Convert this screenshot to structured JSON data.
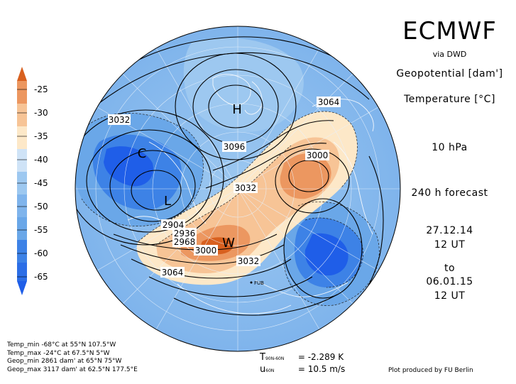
{
  "header": {
    "title": "ECMWF",
    "source": "via DWD",
    "field1_label": "Geopotential [dam']",
    "field2_label": "Temperature [°C]",
    "level": "10 hPa",
    "forecast": "240 h forecast",
    "init_date": "27.12.14",
    "init_time": "12 UT",
    "to_label": "to",
    "valid_date": "06.01.15",
    "valid_time": "12 UT"
  },
  "colorbar": {
    "labels": [
      "-25",
      "-30",
      "-35",
      "-40",
      "-45",
      "-50",
      "-55",
      "-60",
      "-65"
    ],
    "colors": [
      "#d8601f",
      "#ec9760",
      "#f7c496",
      "#fde8c8",
      "#cfe3f7",
      "#9dc8f0",
      "#6aa7e8",
      "#3d82e6",
      "#1f5ee8"
    ]
  },
  "map": {
    "contour_labels": [
      "3032",
      "3064",
      "3096",
      "3000",
      "3032",
      "2904",
      "2936",
      "2968",
      "3000",
      "3032",
      "3064"
    ],
    "pressure_markers": [
      "H",
      "C",
      "L",
      "W"
    ],
    "station_label": "FUB"
  },
  "extremes": {
    "temp_min": "Temp_min -68°C at 55°N 107.5°W",
    "temp_max": "Temp_max -24°C at 67.5°N 5°W",
    "geop_min": "Geop_min 2861 dam' at 65°N 75°W",
    "geop_max": "Geop_max 3117 dam' at 62.5°N 177.5°E"
  },
  "stats": {
    "t_symbol": "T",
    "t_sub": "90N-60N",
    "t_value": "= -2.289 K",
    "u_symbol": "u",
    "u_sub": "60N",
    "u_value": "= 10.5 m/s"
  },
  "credit": "Plot produced by FU Berlin"
}
